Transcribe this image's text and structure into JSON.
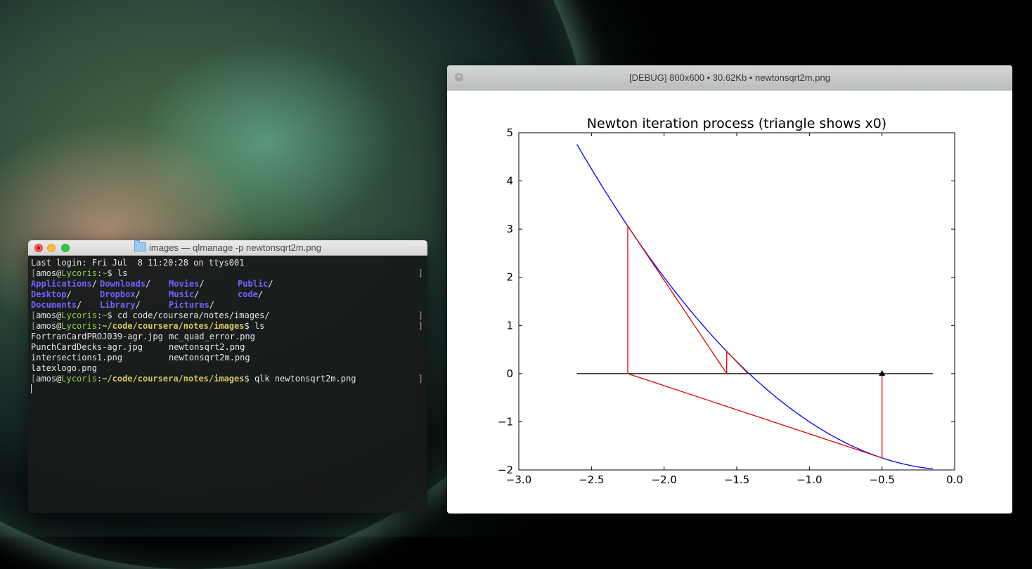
{
  "terminal": {
    "title": "images — qlmanage -p newtonsqrt2m.png",
    "last_login": "Last login: Fri Jul  8 11:20:28 on ttys001",
    "user": "amos",
    "host": "Lycoris",
    "prompt_home": "~",
    "cmd_ls": "ls",
    "dirs_row1": [
      "Applications",
      "Downloads",
      "Movies",
      "Public"
    ],
    "dirs_row2": [
      "Desktop",
      "Dropbox",
      "Music",
      "code"
    ],
    "dirs_row3": [
      "Documents",
      "Library",
      "Pictures"
    ],
    "cmd_cd": "cd code/coursera/notes/images/",
    "prompt_images": "~/code/coursera/notes/images",
    "files_row1": [
      "FortranCardPROJ039-agr.jpg",
      "mc_quad_error.png"
    ],
    "files_row2": [
      "PunchCardDecks-agr.jpg",
      "newtonsqrt2.png"
    ],
    "files_row3": [
      "intersections1.png",
      "newtonsqrt2m.png"
    ],
    "files_row4": [
      "latexlogo.png"
    ],
    "cmd_qlk": "qlk newtonsqrt2m.png"
  },
  "viewer": {
    "title": "[DEBUG] 800x600 • 30.62Kb • newtonsqrt2m.png",
    "close_glyph": "×"
  },
  "chart_data": {
    "type": "line",
    "title": "Newton iteration process (triangle shows x0)",
    "xlim": [
      -3.0,
      0.0
    ],
    "ylim": [
      -2,
      5
    ],
    "xticks": [
      -3.0,
      -2.5,
      -2.0,
      -1.5,
      -1.0,
      -0.5,
      0.0
    ],
    "xtick_labels": [
      "−3.0",
      "−2.5",
      "−2.0",
      "−1.5",
      "−1.0",
      "−0.5",
      "0.0"
    ],
    "yticks": [
      -2,
      -1,
      0,
      1,
      2,
      3,
      4,
      5
    ],
    "ytick_labels": [
      "−2",
      "−1",
      "0",
      "1",
      "2",
      "3",
      "4",
      "5"
    ],
    "function_curve": {
      "color": "#0000ff",
      "x": [
        -2.6,
        -2.4,
        -2.25,
        -2.0,
        -1.8,
        -1.6,
        -1.414,
        -1.2,
        -1.0,
        -0.8,
        -0.5,
        -0.3,
        -0.15
      ],
      "y": [
        4.76,
        3.76,
        3.06,
        2.0,
        1.24,
        0.56,
        0.0,
        -0.56,
        -1.0,
        -1.36,
        -1.75,
        -1.91,
        -1.98
      ]
    },
    "zero_line": {
      "color": "#000000",
      "x": [
        -2.6,
        -0.15
      ],
      "y": [
        0,
        0
      ]
    },
    "iteration_path": {
      "color": "#dd0000",
      "x": [
        -0.5,
        -0.5,
        -2.25,
        -2.25,
        -1.569,
        -1.569,
        -1.422
      ],
      "y": [
        0,
        -1.75,
        0,
        3.063,
        0,
        0.461,
        0
      ]
    },
    "start_marker": {
      "x": -0.5,
      "y": 0,
      "shape": "triangle",
      "color": "#000000"
    },
    "grid": false
  }
}
